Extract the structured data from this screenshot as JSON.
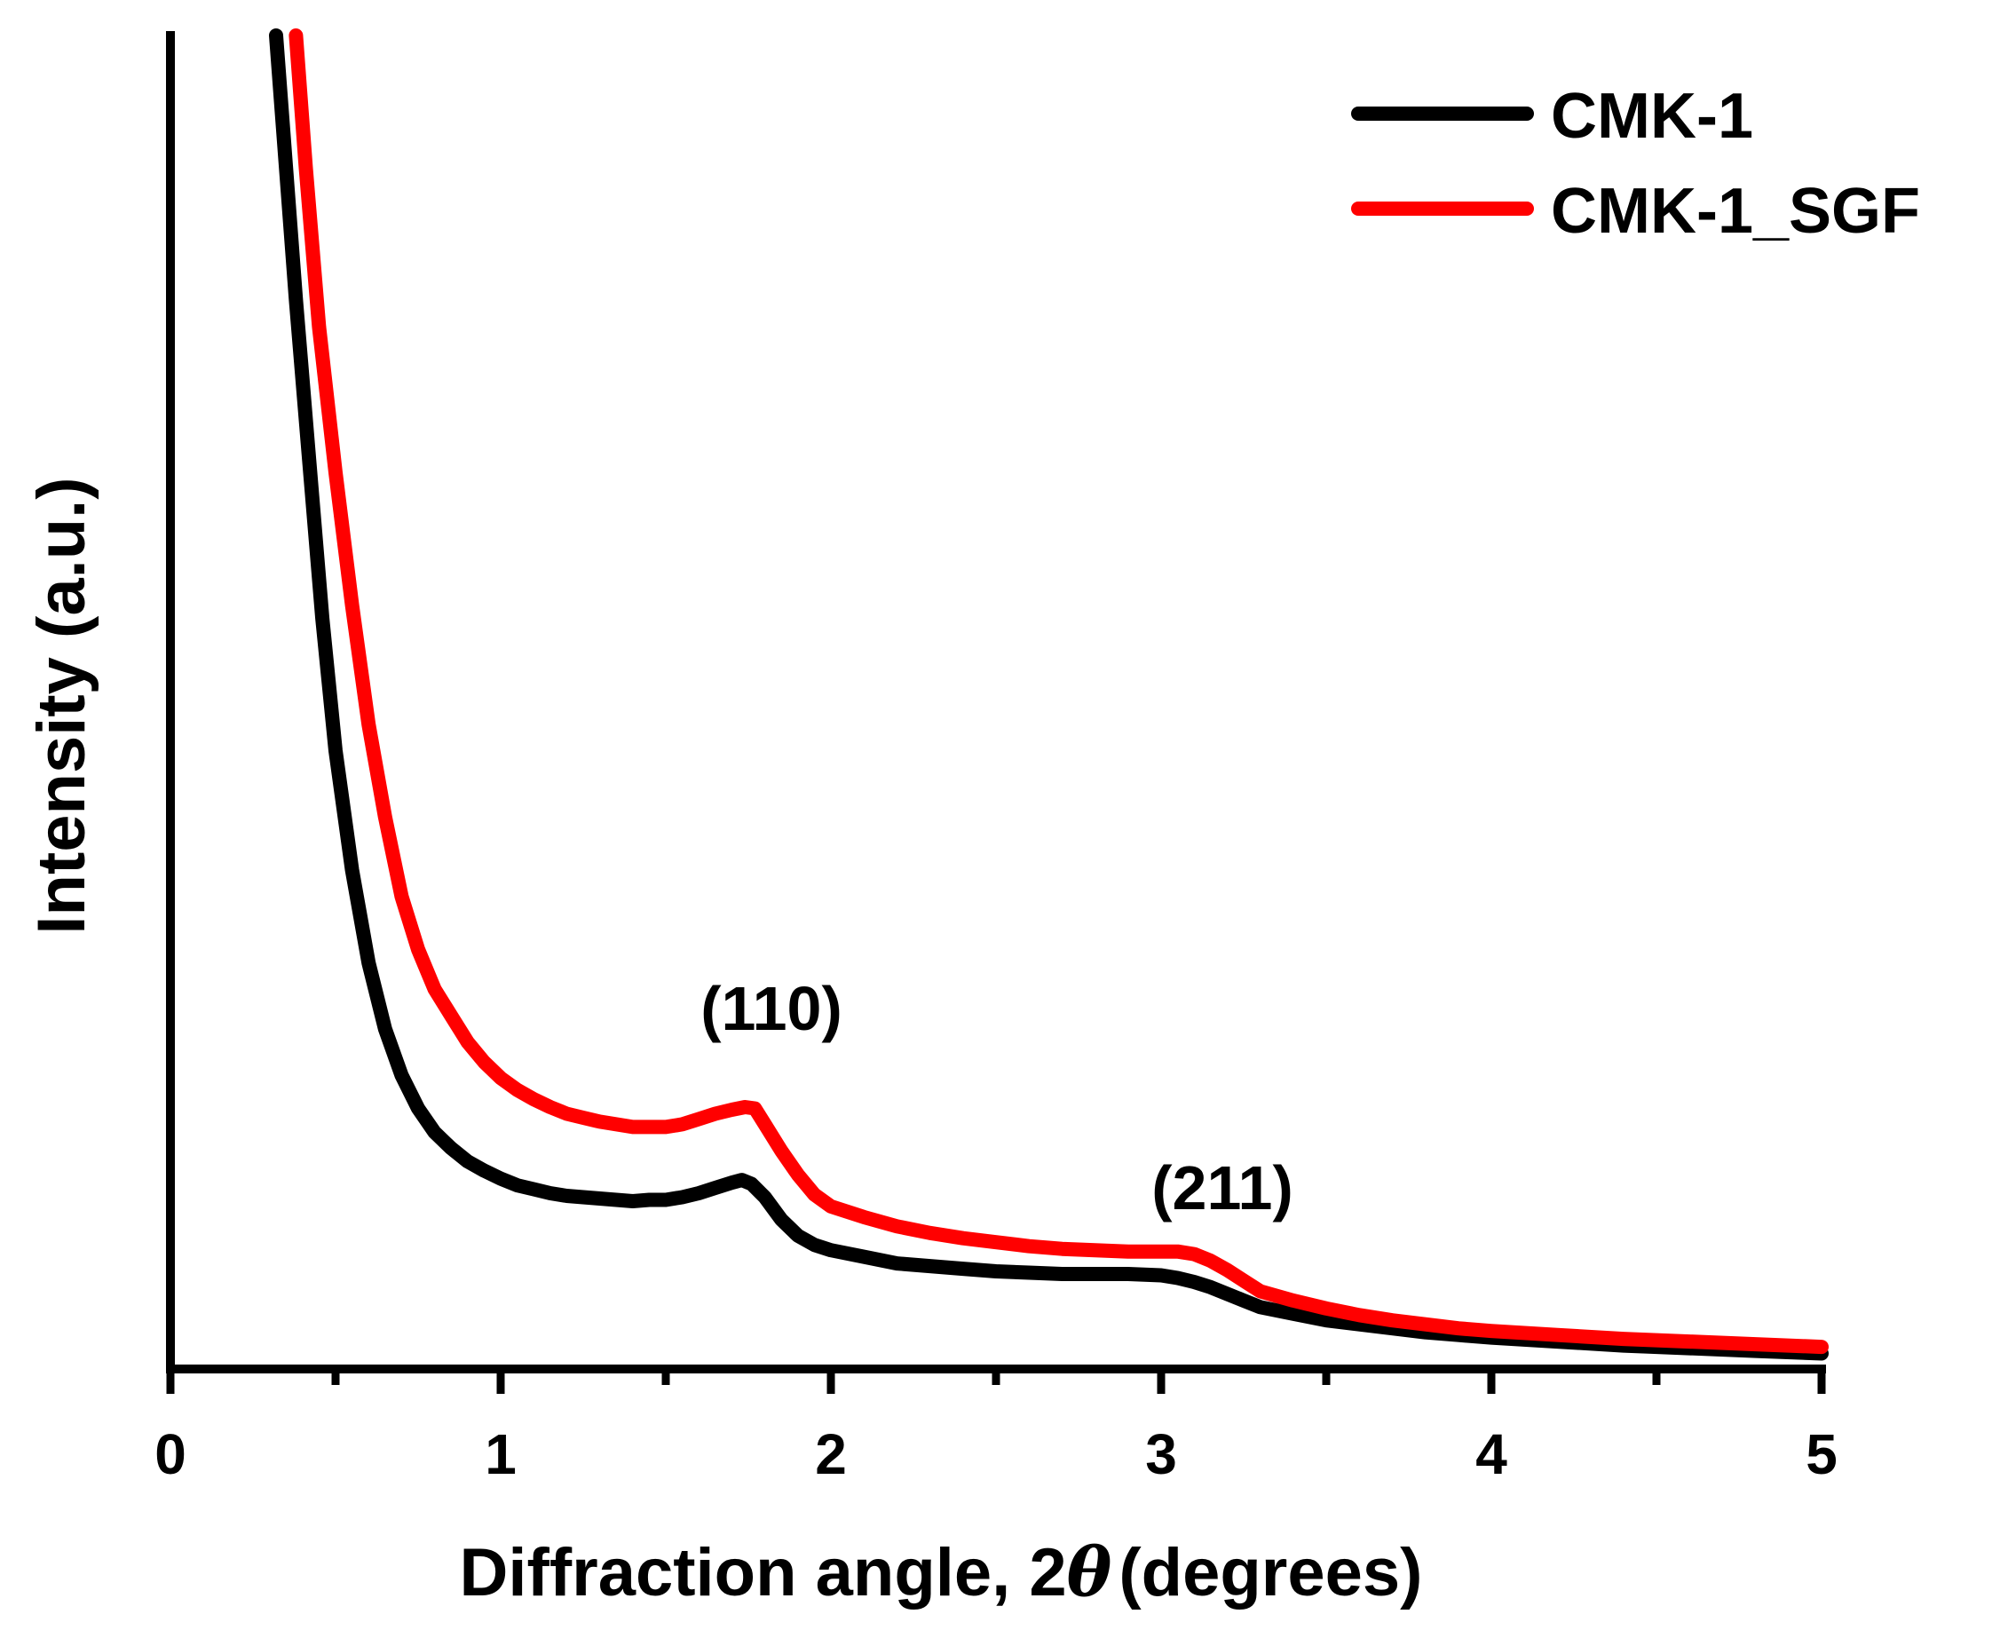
{
  "chart_data": {
    "type": "line",
    "title": "",
    "xlabel": "Diffraction angle, 2",
    "xlabel_symbol": "θ",
    "xlabel_suffix": "(degrees)",
    "ylabel": "Intensity (a.u.)",
    "xlim": [
      0,
      5
    ],
    "ylim": [
      0,
      100
    ],
    "x_ticks": [
      0,
      1,
      2,
      3,
      4,
      5
    ],
    "x_tick_labels": [
      "0",
      "1",
      "2",
      "3",
      "4",
      "5"
    ],
    "x_minor_ticks": [
      0.5,
      1.5,
      2.5,
      3.5,
      4.5
    ],
    "grid": false,
    "legend_position": "top-right",
    "annotations": [
      {
        "text": "(110)",
        "x": 1.82,
        "y": 26
      },
      {
        "text": "(211)",
        "x": 3.18,
        "y": 13.5
      }
    ],
    "series": [
      {
        "name": "CMK-1",
        "color": "#000000",
        "x": [
          0.32,
          0.35,
          0.38,
          0.42,
          0.46,
          0.5,
          0.55,
          0.6,
          0.65,
          0.7,
          0.75,
          0.8,
          0.85,
          0.9,
          0.95,
          1.0,
          1.05,
          1.1,
          1.15,
          1.2,
          1.25,
          1.3,
          1.35,
          1.4,
          1.45,
          1.5,
          1.55,
          1.6,
          1.65,
          1.7,
          1.73,
          1.76,
          1.8,
          1.85,
          1.9,
          1.95,
          2.0,
          2.1,
          2.2,
          2.3,
          2.4,
          2.5,
          2.6,
          2.7,
          2.8,
          2.9,
          3.0,
          3.05,
          3.1,
          3.15,
          3.2,
          3.25,
          3.3,
          3.4,
          3.5,
          3.6,
          3.7,
          3.8,
          3.9,
          4.0,
          4.2,
          4.4,
          4.6,
          4.8,
          5.0
        ],
        "y": [
          100,
          90,
          80,
          68,
          56,
          46,
          37,
          30,
          25,
          21.5,
          19,
          17.2,
          16,
          15,
          14.3,
          13.7,
          13.2,
          12.9,
          12.6,
          12.4,
          12.3,
          12.2,
          12.1,
          12.0,
          12.1,
          12.1,
          12.3,
          12.6,
          13.0,
          13.4,
          13.6,
          13.3,
          12.3,
          10.6,
          9.4,
          8.7,
          8.3,
          7.8,
          7.3,
          7.1,
          6.9,
          6.7,
          6.6,
          6.5,
          6.5,
          6.5,
          6.4,
          6.2,
          5.9,
          5.5,
          5.0,
          4.5,
          4.0,
          3.5,
          3.0,
          2.7,
          2.4,
          2.1,
          1.9,
          1.7,
          1.4,
          1.1,
          0.9,
          0.7,
          0.5
        ]
      },
      {
        "name": "CMK-1_SGF",
        "color": "#ff0000",
        "x": [
          0.38,
          0.41,
          0.45,
          0.5,
          0.55,
          0.6,
          0.65,
          0.7,
          0.75,
          0.8,
          0.85,
          0.9,
          0.95,
          1.0,
          1.05,
          1.1,
          1.15,
          1.2,
          1.25,
          1.3,
          1.35,
          1.4,
          1.45,
          1.5,
          1.55,
          1.6,
          1.65,
          1.7,
          1.74,
          1.77,
          1.8,
          1.85,
          1.9,
          1.95,
          2.0,
          2.1,
          2.2,
          2.3,
          2.4,
          2.5,
          2.6,
          2.7,
          2.8,
          2.9,
          3.0,
          3.05,
          3.1,
          3.15,
          3.2,
          3.25,
          3.3,
          3.4,
          3.5,
          3.6,
          3.7,
          3.8,
          3.9,
          4.0,
          4.2,
          4.4,
          4.6,
          4.8,
          5.0
        ],
        "y": [
          100,
          90,
          78,
          67,
          57,
          48,
          41,
          35,
          31,
          28,
          26,
          24,
          22.5,
          21.3,
          20.4,
          19.7,
          19.1,
          18.6,
          18.3,
          18.0,
          17.8,
          17.6,
          17.6,
          17.6,
          17.8,
          18.2,
          18.6,
          18.9,
          19.1,
          19.0,
          17.8,
          15.8,
          14.0,
          12.5,
          11.6,
          10.8,
          10.1,
          9.6,
          9.2,
          8.9,
          8.6,
          8.4,
          8.3,
          8.2,
          8.2,
          8.2,
          8.0,
          7.5,
          6.8,
          6.0,
          5.2,
          4.5,
          3.9,
          3.4,
          3.0,
          2.7,
          2.4,
          2.2,
          1.9,
          1.6,
          1.4,
          1.2,
          1.0
        ]
      }
    ]
  }
}
